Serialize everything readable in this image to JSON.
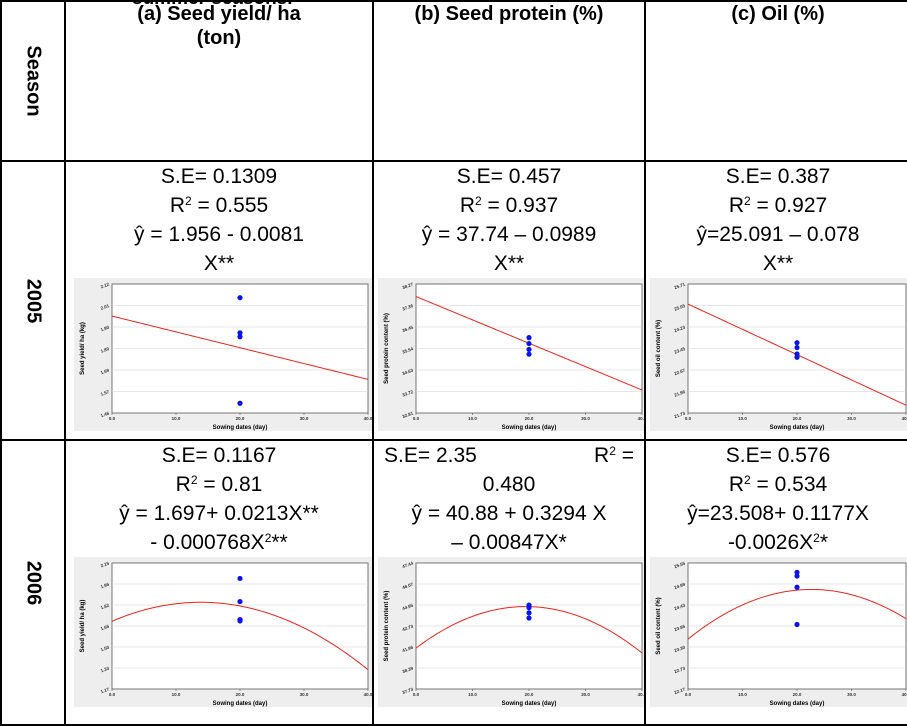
{
  "caption": "summer seasons.",
  "headers": {
    "season": "Season",
    "a": "(a) Seed yield/ ha (ton)",
    "b": "(b) Seed protein (%)",
    "c": "(c) Oil (%)"
  },
  "rows": [
    {
      "season": "2005",
      "cells": [
        {
          "se": "S.E= 0.1309",
          "r2": "R",
          "r2_sup": "2",
          "r2_val": " = 0.555",
          "eq1": "ŷ = 1.956  - 0.0081",
          "eq2": "X**",
          "eq2_sup": ""
        },
        {
          "se": "S.E= 0.457",
          "r2": "R",
          "r2_sup": "2",
          "r2_val": " = 0.937",
          "eq1": "ŷ = 37.74 – 0.0989",
          "eq2": "X**",
          "eq2_sup": ""
        },
        {
          "se": "S.E= 0.387",
          "r2": "R",
          "r2_sup": "2",
          "r2_val": " = 0.927",
          "eq1": "ŷ=25.091 – 0.078",
          "eq2": "X**",
          "eq2_sup": ""
        }
      ]
    },
    {
      "season": "2006",
      "cells": [
        {
          "se": "S.E= 0.1167",
          "r2": "R",
          "r2_sup": "2",
          "r2_val": " = 0.81",
          "eq1": "ŷ = 1.697+ 0.0213X**",
          "eq2": "- 0.000768X",
          "eq2_sup": "2",
          "eq2_tail": "**"
        },
        {
          "se": "S.E= 2.35",
          "r2": "R",
          "r2_sup": "2",
          "r2_val": " =",
          "r2_line2": "0.480",
          "eq1": "ŷ = 40.88 + 0.3294 X",
          "eq2": "– 0.00847X*",
          "eq2_sup": ""
        },
        {
          "se": "S.E= 0.576",
          "r2": "R",
          "r2_sup": "2",
          "r2_val": " = 0.534",
          "eq1": "ŷ=23.508+ 0.1177X",
          "eq2": "-0.0026X",
          "eq2_sup": "2",
          "eq2_tail": "*"
        }
      ]
    }
  ],
  "colors": {
    "line": "#e8241f",
    "point": "#0a14e6",
    "plot_bg": "#eeeeee"
  },
  "chart_data": [
    {
      "type": "scatter",
      "id": "2005-a",
      "xlabel": "Sowing dates (day)",
      "ylabel": "Seed yield/ ha (kg)",
      "xlim": [
        0,
        40
      ],
      "xticks": [
        "0.0",
        "10.0",
        "20.0",
        "30.0",
        "40.0"
      ],
      "xtickvals": [
        0,
        10,
        20,
        30,
        40
      ],
      "ylim": [
        1.46,
        2.12
      ],
      "yticks": [
        "2.12",
        "2.01",
        "1.90",
        "1.80",
        "1.69",
        "1.57",
        "1.46"
      ],
      "points": [
        [
          20,
          2.05
        ],
        [
          20,
          1.87
        ],
        [
          20,
          1.85
        ],
        [
          20,
          1.51
        ]
      ],
      "fit": {
        "kind": "linear",
        "a": 1.956,
        "b": -0.0081
      }
    },
    {
      "type": "scatter",
      "id": "2005-b",
      "xlabel": "Sowing dates (day)",
      "ylabel": "Seed protein content (%)",
      "xlim": [
        0,
        40
      ],
      "xticks": [
        "0.0",
        "10.0",
        "20.0",
        "30.0",
        "40.0"
      ],
      "xtickvals": [
        0,
        10,
        20,
        30,
        40
      ],
      "ylim": [
        32.81,
        38.27
      ],
      "yticks": [
        "38.27",
        "37.36",
        "36.45",
        "35.54",
        "34.63",
        "33.72",
        "32.81"
      ],
      "points": [
        [
          20,
          36.0
        ],
        [
          20,
          35.75
        ],
        [
          20,
          35.5
        ],
        [
          20,
          35.3
        ]
      ],
      "fit": {
        "kind": "linear",
        "a": 37.74,
        "b": -0.0989
      }
    },
    {
      "type": "scatter",
      "id": "2005-c",
      "xlabel": "Sowing dates (day)",
      "ylabel": "Seed oil content (%)",
      "xlim": [
        0,
        40
      ],
      "xticks": [
        "0.0",
        "10.0",
        "20.0",
        "30.0",
        "40.0"
      ],
      "xtickvals": [
        0,
        10,
        20,
        30,
        40
      ],
      "ylim": [
        21.73,
        25.71
      ],
      "yticks": [
        "25.71",
        "25.05",
        "24.23",
        "23.45",
        "22.67",
        "21.96",
        "21.73"
      ],
      "points": [
        [
          20,
          23.9
        ],
        [
          20,
          23.75
        ],
        [
          20,
          23.55
        ],
        [
          20,
          23.45
        ]
      ],
      "fit": {
        "kind": "linear",
        "a": 25.091,
        "b": -0.078
      }
    },
    {
      "type": "scatter",
      "id": "2006-a",
      "xlabel": "Sowing dates (day)",
      "ylabel": "Seed yield/ ha (kg)",
      "xlim": [
        0,
        40
      ],
      "xticks": [
        "0.0",
        "10.0",
        "20.0",
        "30.0",
        "40.0"
      ],
      "xtickvals": [
        0,
        10,
        20,
        30,
        40
      ],
      "ylim": [
        1.17,
        2.15
      ],
      "yticks": [
        "2.15",
        "1.96",
        "1.82",
        "1.66",
        "1.50",
        "1.33",
        "1.17"
      ],
      "points": [
        [
          20,
          2.03
        ],
        [
          20,
          1.85
        ],
        [
          20,
          1.71
        ],
        [
          20,
          1.7
        ]
      ],
      "fit": {
        "kind": "quadratic",
        "a": 1.697,
        "b": 0.0213,
        "c": -0.000768
      }
    },
    {
      "type": "scatter",
      "id": "2006-b",
      "xlabel": "Sowing dates (day)",
      "ylabel": "Seed protein content (%)",
      "xlim": [
        0,
        40
      ],
      "xticks": [
        "0.0",
        "10.0",
        "20.0",
        "30.0",
        "40.0"
      ],
      "xtickvals": [
        0,
        10,
        20,
        30,
        40
      ],
      "ylim": [
        37.73,
        47.44
      ],
      "yticks": [
        "47.44",
        "46.07",
        "44.95",
        "42.73",
        "41.96",
        "38.39",
        "37.73"
      ],
      "points": [
        [
          20,
          44.2
        ],
        [
          20,
          44.0
        ],
        [
          20,
          43.6
        ],
        [
          20,
          43.2
        ]
      ],
      "fit": {
        "kind": "quadratic",
        "a": 40.88,
        "b": 0.3294,
        "c": -0.00847
      }
    },
    {
      "type": "scatter",
      "id": "2006-c",
      "xlabel": "Sowing dates (day)",
      "ylabel": "Seed oil content (%)",
      "xlim": [
        0,
        40
      ],
      "xticks": [
        "0.0",
        "10.0",
        "20.0",
        "30.0",
        "40.0"
      ],
      "xtickvals": [
        0,
        10,
        20,
        30,
        40
      ],
      "ylim": [
        22.17,
        25.55
      ],
      "yticks": [
        "25.55",
        "24.99",
        "24.43",
        "23.86",
        "23.30",
        "22.73",
        "22.17"
      ],
      "points": [
        [
          20,
          25.3
        ],
        [
          20,
          25.2
        ],
        [
          20,
          24.9
        ],
        [
          20,
          23.9
        ]
      ],
      "fit": {
        "kind": "quadratic",
        "a": 23.508,
        "b": 0.1177,
        "c": -0.0026
      }
    }
  ]
}
